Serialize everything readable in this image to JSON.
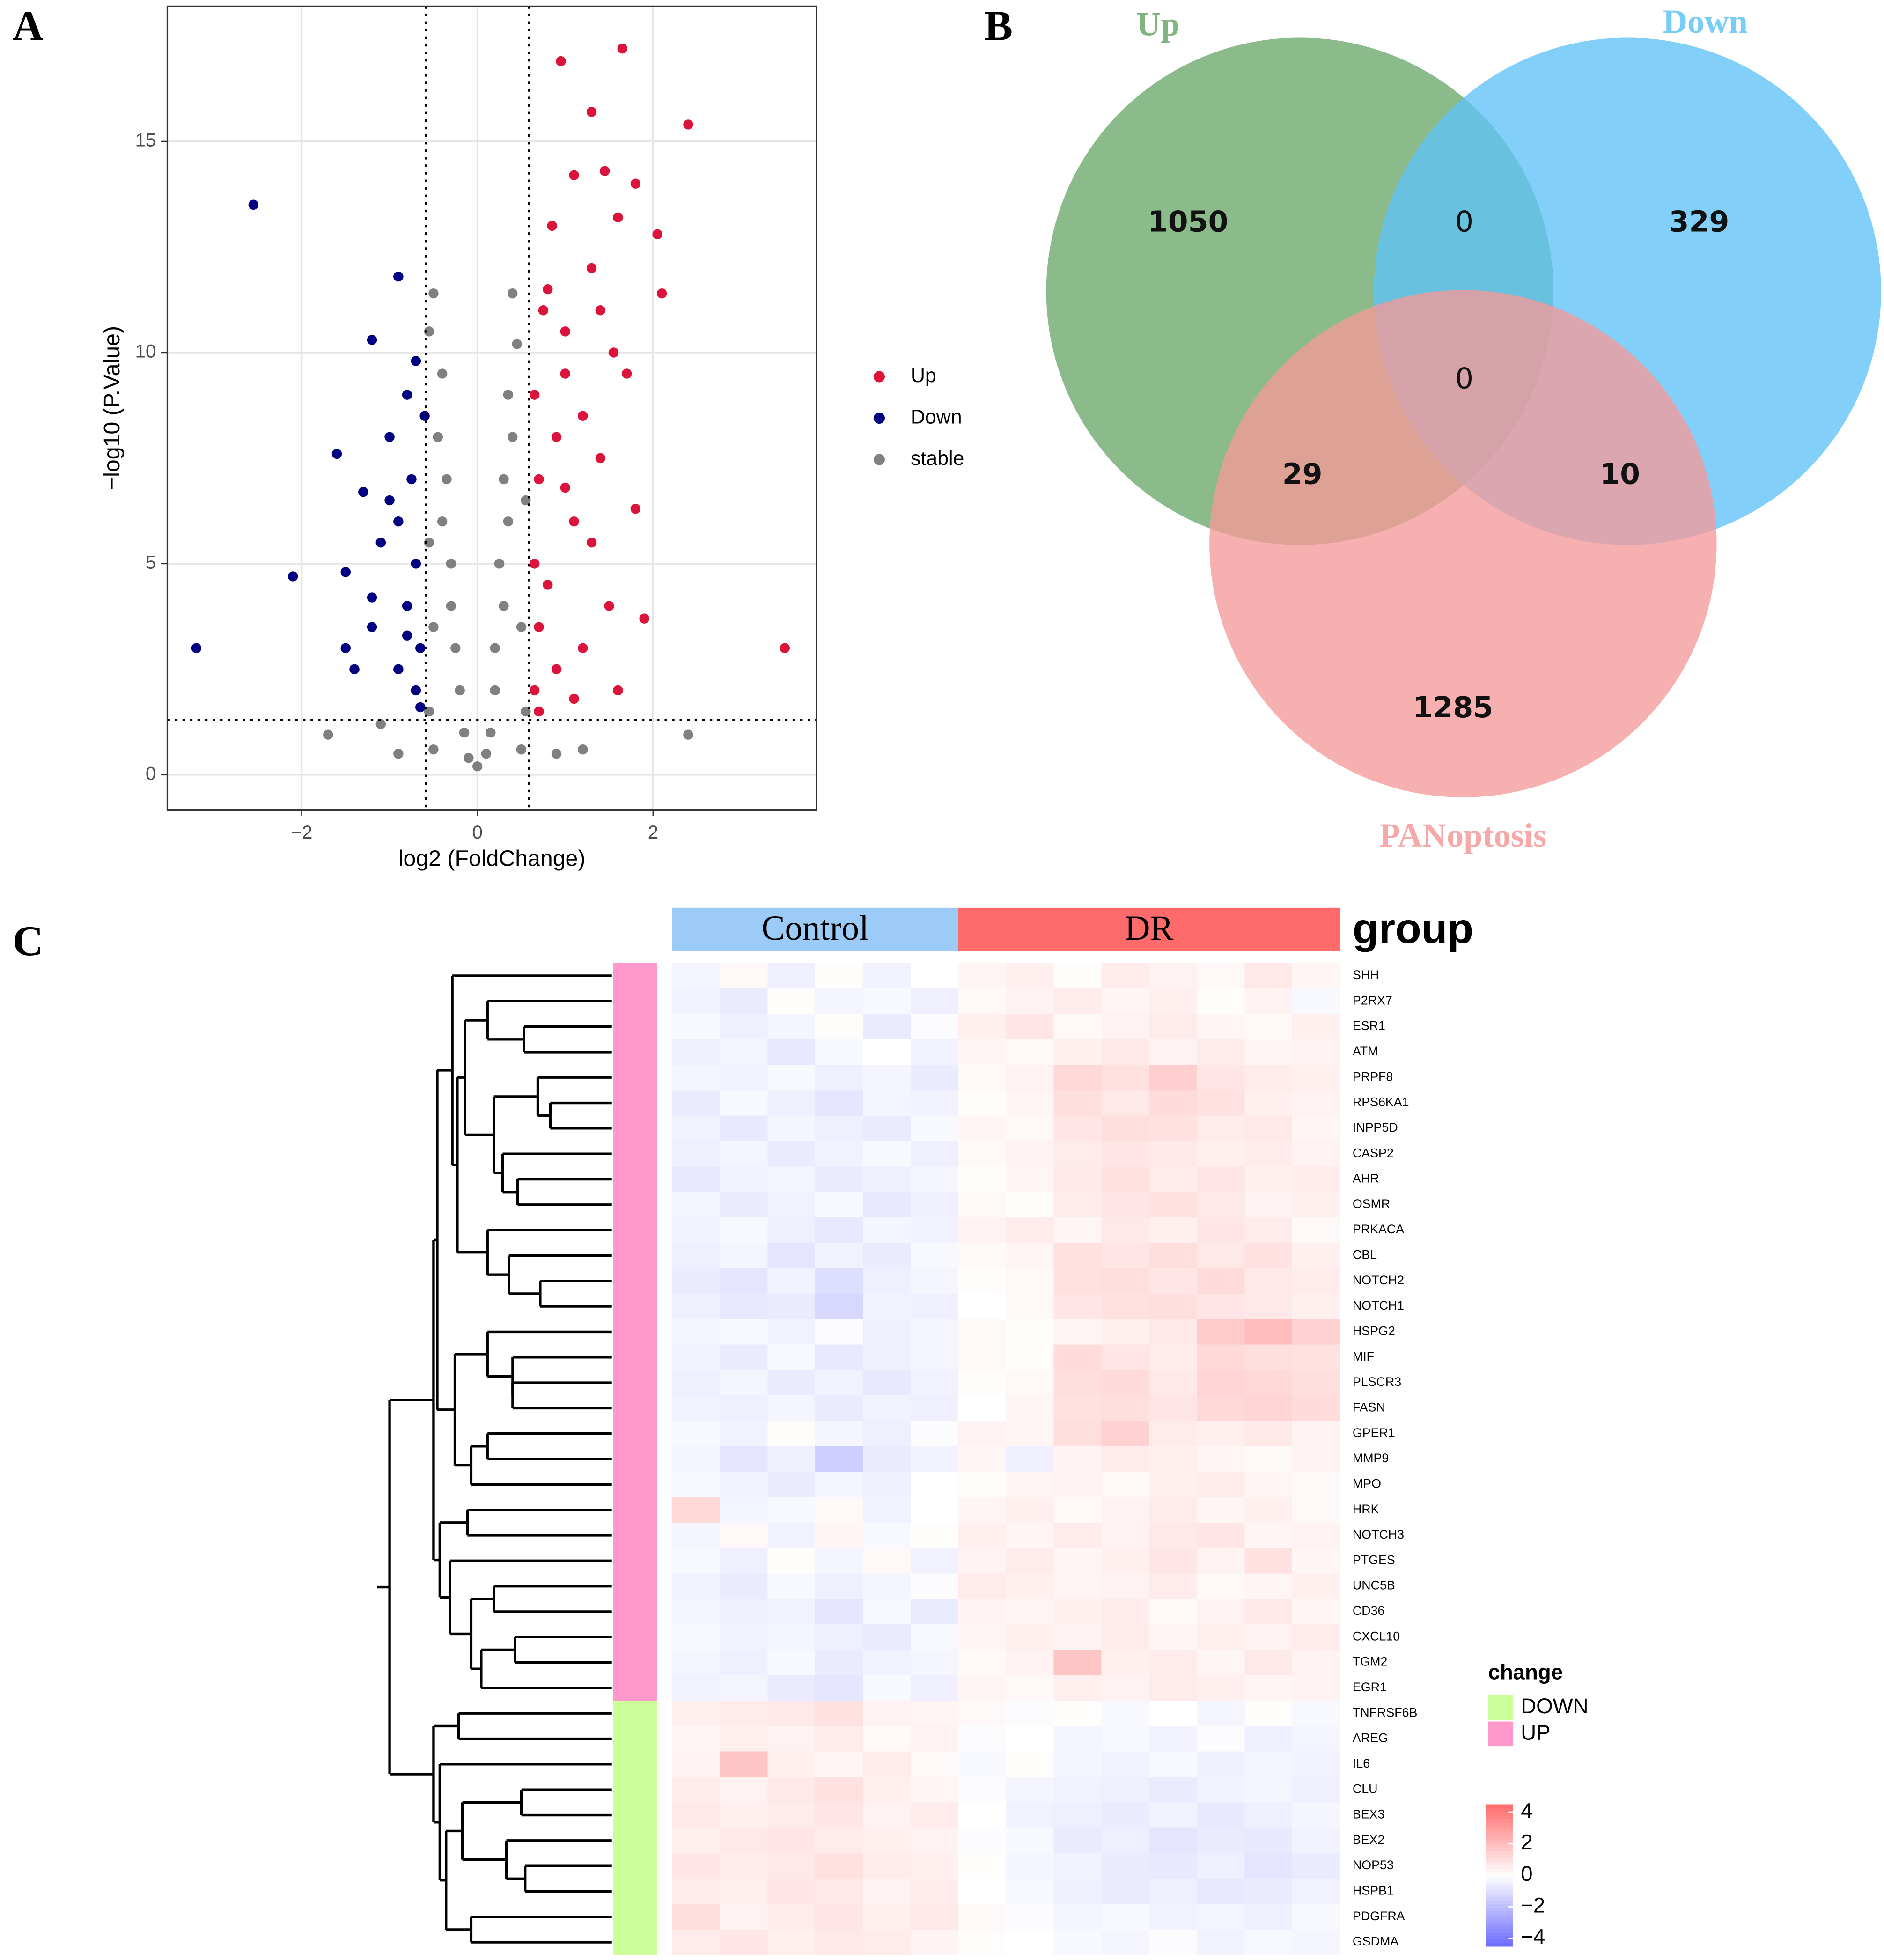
{
  "panel_labels": [
    "A",
    "B",
    "C"
  ],
  "chart_data": [
    {
      "type": "scatter",
      "xlabel": "log2 (FoldChange)",
      "ylabel": "−log10 (P.Value)",
      "xlim": [
        -3.53,
        3.86
      ],
      "ylim": [
        -0.83,
        18.2
      ],
      "xticks": [
        {
          "value": -2,
          "label": "−2"
        },
        0,
        2
      ],
      "yticks": [
        0,
        5,
        10,
        15
      ],
      "grid": true,
      "legend": "right",
      "thresholds": {
        "x": [
          -0.585,
          0.585
        ],
        "y": [
          1.301
        ]
      },
      "series": [
        {
          "name": "Up",
          "color": "#dc143c",
          "x": [
            0.95,
            1.65,
            1.3,
            2.4,
            3.5,
            1.9,
            1.1,
            1.45,
            1.8,
            2.05,
            0.85,
            1.6,
            2.1,
            1.3,
            0.75,
            1.0,
            1.55,
            1.7,
            0.65,
            1.2,
            0.9,
            1.4,
            1.8,
            0.7,
            1.1,
            0.65,
            1.3,
            0.8,
            1.5,
            0.7,
            1.2,
            0.9,
            1.6,
            0.65,
            1.1,
            0.7,
            1.0,
            0.8,
            1.4,
            1.0
          ],
          "y": [
            16.9,
            17.2,
            15.7,
            15.4,
            3.0,
            3.7,
            14.2,
            14.3,
            14.0,
            12.8,
            13.0,
            13.2,
            11.4,
            12.0,
            11.0,
            10.5,
            10.0,
            9.5,
            9.0,
            8.5,
            8.0,
            7.5,
            6.3,
            7.0,
            6.0,
            5.0,
            5.5,
            4.5,
            4.0,
            3.5,
            3.0,
            2.5,
            2.0,
            2.0,
            1.8,
            1.5,
            9.5,
            11.5,
            11.0,
            6.8
          ]
        },
        {
          "name": "Down",
          "color": "#000080",
          "x": [
            -3.2,
            -2.55,
            -2.1,
            -1.6,
            -1.2,
            -1.5,
            -1.3,
            -0.9,
            -0.8,
            -1.0,
            -0.75,
            -0.9,
            -1.1,
            -0.7,
            -0.8,
            -1.2,
            -0.65,
            -1.4,
            -0.9,
            -0.7,
            -1.0,
            -0.6,
            -0.7,
            -1.2,
            -0.8,
            -1.5,
            -0.65
          ],
          "y": [
            3.0,
            13.5,
            4.7,
            7.6,
            10.3,
            4.8,
            6.7,
            11.8,
            9.0,
            8.0,
            7.0,
            6.0,
            5.5,
            5.0,
            4.0,
            3.5,
            3.0,
            2.5,
            2.5,
            2.0,
            6.5,
            8.5,
            9.8,
            4.2,
            3.3,
            3.0,
            1.6
          ]
        },
        {
          "name": "stable",
          "color": "#808080",
          "x": [
            -1.7,
            2.4,
            0.4,
            -0.5,
            -0.55,
            0.45,
            -0.4,
            0.35,
            -0.45,
            0.4,
            -0.35,
            0.3,
            -0.4,
            0.35,
            -0.3,
            0.25,
            -0.3,
            0.3,
            -0.25,
            0.2,
            -0.2,
            0.2,
            -0.15,
            0.15,
            0,
            -0.5,
            0.5,
            -0.9,
            0.9,
            1.2,
            -1.1,
            0.1,
            -0.1,
            -0.55,
            0.55,
            -0.5,
            0.5,
            -0.55,
            0.55
          ],
          "y": [
            0.95,
            0.95,
            11.4,
            11.4,
            10.5,
            10.2,
            9.5,
            9.0,
            8.0,
            8.0,
            7.0,
            7.0,
            6.0,
            6.0,
            5.0,
            5.0,
            4.0,
            4.0,
            3.0,
            3.0,
            2.0,
            2.0,
            1.0,
            1.0,
            0.2,
            0.6,
            0.6,
            0.5,
            0.5,
            0.6,
            1.2,
            0.5,
            0.4,
            1.5,
            1.5,
            3.5,
            3.5,
            5.5,
            6.5
          ]
        }
      ]
    },
    {
      "type": "venn",
      "sets": [
        {
          "name": "Up",
          "color": "#6aa86a"
        },
        {
          "name": "Down",
          "color": "#5fc3f7"
        },
        {
          "name": "PANoptosis",
          "color": "#f59a9a"
        }
      ],
      "regions": [
        {
          "sets": [
            0
          ],
          "value": 1050
        },
        {
          "sets": [
            0,
            1
          ],
          "value": 0
        },
        {
          "sets": [
            1
          ],
          "value": 329
        },
        {
          "sets": [
            0,
            1,
            2
          ],
          "value": 0
        },
        {
          "sets": [
            0,
            2
          ],
          "value": 29
        },
        {
          "sets": [
            1,
            2
          ],
          "value": 10
        },
        {
          "sets": [
            2
          ],
          "value": 1285
        }
      ]
    },
    {
      "type": "heatmap",
      "group_title": "group",
      "groups": [
        {
          "name": "Control",
          "color": "#9dcbf7",
          "columns": 6
        },
        {
          "name": "DR",
          "color": "#ff6b6b",
          "columns": 8
        }
      ],
      "rows": [
        "SHH",
        "P2RX7",
        "ESR1",
        "ATM",
        "PRPF8",
        "RPS6KA1",
        "INPP5D",
        "CASP2",
        "AHR",
        "OSMR",
        "PRKACA",
        "CBL",
        "NOTCH2",
        "NOTCH1",
        "HSPG2",
        "MIF",
        "PLSCR3",
        "FASN",
        "GPER1",
        "MMP9",
        "MPO",
        "HRK",
        "NOTCH3",
        "PTGES",
        "UNC5B",
        "CD36",
        "CXCL10",
        "TGM2",
        "EGR1",
        "TNFRSF6B",
        "AREG",
        "IL6",
        "CLU",
        "BEX3",
        "BEX2",
        "NOP53",
        "HSPB1",
        "PDGFRA",
        "GSDMA"
      ],
      "change_legend": {
        "title": "change",
        "items": [
          {
            "name": "DOWN",
            "color": "#ccff99"
          },
          {
            "name": "UP",
            "color": "#ff99cc"
          }
        ]
      },
      "row_change": [
        1,
        1,
        1,
        1,
        1,
        1,
        1,
        1,
        1,
        1,
        1,
        1,
        1,
        1,
        1,
        1,
        1,
        1,
        1,
        1,
        1,
        1,
        1,
        1,
        1,
        1,
        1,
        1,
        1,
        0,
        0,
        0,
        0,
        0,
        0,
        0,
        0,
        0,
        0
      ],
      "colorscale": {
        "lim": [
          -4.5,
          4.5
        ],
        "colors": [
          "#6b6bff",
          "#ffffff",
          "#ff6b6b"
        ],
        "ticks": [
          4,
          2,
          0,
          {
            "value": -2,
            "label": "−2"
          },
          {
            "value": -4,
            "label": "−4"
          }
        ]
      },
      "values": [
        [
          -0.3,
          0.2,
          -0.5,
          0.1,
          -0.4,
          0.0,
          0.3,
          0.5,
          0.1,
          0.6,
          0.4,
          0.2,
          0.7,
          0.3
        ],
        [
          -0.4,
          -0.6,
          0.1,
          -0.3,
          -0.2,
          -0.5,
          0.2,
          0.4,
          0.6,
          0.3,
          0.5,
          0.1,
          0.4,
          -0.2
        ],
        [
          -0.2,
          -0.5,
          -0.3,
          0.1,
          -0.6,
          -0.1,
          0.5,
          0.8,
          0.2,
          0.4,
          0.6,
          0.3,
          0.2,
          0.5
        ],
        [
          -0.5,
          -0.3,
          -0.7,
          -0.2,
          0.0,
          -0.4,
          0.3,
          0.2,
          0.5,
          0.7,
          0.4,
          0.6,
          0.3,
          0.4
        ],
        [
          -0.3,
          -0.4,
          -0.2,
          -0.5,
          -0.3,
          -0.6,
          0.2,
          0.4,
          1.2,
          0.9,
          1.5,
          0.8,
          0.6,
          0.5
        ],
        [
          -0.6,
          -0.2,
          -0.5,
          -0.8,
          -0.3,
          -0.4,
          0.1,
          0.3,
          1.0,
          0.7,
          1.1,
          0.9,
          0.5,
          0.4
        ],
        [
          -0.4,
          -0.7,
          -0.3,
          -0.5,
          -0.6,
          -0.2,
          0.3,
          0.2,
          0.8,
          1.0,
          0.9,
          0.6,
          0.7,
          0.3
        ],
        [
          -0.5,
          -0.3,
          -0.6,
          -0.4,
          -0.2,
          -0.5,
          0.2,
          0.4,
          0.6,
          0.8,
          0.7,
          0.5,
          0.6,
          0.4
        ],
        [
          -0.7,
          -0.4,
          -0.3,
          -0.6,
          -0.5,
          -0.3,
          0.1,
          0.3,
          0.7,
          0.9,
          0.6,
          0.8,
          0.5,
          0.6
        ],
        [
          -0.3,
          -0.6,
          -0.4,
          -0.2,
          -0.7,
          -0.5,
          0.2,
          0.1,
          0.6,
          0.8,
          0.9,
          0.7,
          0.4,
          0.5
        ],
        [
          -0.4,
          -0.2,
          -0.5,
          -0.7,
          -0.3,
          -0.4,
          0.4,
          0.6,
          0.3,
          0.7,
          0.5,
          0.8,
          0.6,
          0.2
        ],
        [
          -0.5,
          -0.3,
          -0.8,
          -0.4,
          -0.6,
          -0.2,
          0.2,
          0.3,
          0.9,
          0.8,
          1.0,
          0.7,
          0.9,
          0.5
        ],
        [
          -0.6,
          -0.8,
          -0.4,
          -1.0,
          -0.5,
          -0.3,
          0.1,
          0.2,
          0.9,
          1.0,
          0.8,
          1.1,
          0.7,
          0.6
        ],
        [
          -0.5,
          -0.7,
          -0.6,
          -1.2,
          -0.4,
          -0.5,
          0.0,
          0.2,
          0.8,
          0.9,
          1.0,
          0.8,
          0.7,
          0.5
        ],
        [
          -0.3,
          -0.2,
          -0.4,
          -0.1,
          -0.5,
          -0.3,
          0.2,
          0.1,
          0.3,
          0.5,
          0.7,
          1.6,
          2.0,
          1.4
        ],
        [
          -0.4,
          -0.6,
          -0.2,
          -0.7,
          -0.5,
          -0.3,
          0.2,
          0.1,
          1.1,
          0.8,
          0.6,
          1.2,
          1.0,
          0.9
        ],
        [
          -0.5,
          -0.3,
          -0.6,
          -0.4,
          -0.7,
          -0.4,
          0.1,
          0.2,
          1.0,
          1.1,
          0.7,
          1.3,
          1.2,
          1.0
        ],
        [
          -0.4,
          -0.5,
          -0.3,
          -0.6,
          -0.4,
          -0.5,
          0.0,
          0.3,
          0.9,
          1.0,
          0.8,
          1.2,
          1.3,
          1.1
        ],
        [
          -0.2,
          -0.4,
          0.1,
          -0.3,
          -0.5,
          -0.1,
          0.4,
          0.3,
          1.0,
          1.4,
          0.6,
          0.5,
          0.7,
          0.4
        ],
        [
          -0.3,
          -0.8,
          -0.5,
          -1.5,
          -0.6,
          -0.4,
          0.3,
          -0.5,
          0.4,
          0.6,
          0.5,
          0.3,
          0.2,
          0.4
        ],
        [
          -0.2,
          -0.4,
          -0.6,
          -0.3,
          -0.5,
          0.0,
          0.1,
          0.3,
          0.4,
          0.2,
          0.5,
          0.6,
          0.3,
          0.2
        ],
        [
          1.2,
          -0.3,
          -0.2,
          0.2,
          -0.4,
          0.0,
          0.3,
          0.5,
          0.2,
          0.4,
          0.6,
          0.3,
          0.5,
          0.2
        ],
        [
          -0.3,
          0.2,
          -0.4,
          0.3,
          -0.2,
          0.1,
          0.5,
          0.3,
          0.6,
          0.4,
          0.7,
          0.8,
          0.3,
          0.4
        ],
        [
          -0.2,
          -0.5,
          0.1,
          -0.3,
          0.2,
          -0.4,
          0.4,
          0.6,
          0.3,
          0.5,
          0.8,
          0.4,
          0.9,
          0.3
        ],
        [
          -0.4,
          -0.6,
          -0.2,
          -0.5,
          -0.3,
          -0.1,
          0.6,
          0.5,
          0.3,
          0.4,
          0.6,
          0.2,
          0.3,
          0.5
        ],
        [
          -0.3,
          -0.5,
          -0.4,
          -0.8,
          -0.2,
          -0.6,
          0.4,
          0.3,
          0.5,
          0.6,
          0.2,
          0.4,
          0.7,
          0.3
        ],
        [
          -0.2,
          -0.4,
          -0.3,
          -0.5,
          -0.6,
          -0.2,
          0.3,
          0.5,
          0.4,
          0.6,
          0.3,
          0.5,
          0.4,
          0.6
        ],
        [
          -0.3,
          -0.5,
          -0.2,
          -0.6,
          -0.4,
          -0.3,
          0.2,
          0.4,
          1.8,
          0.5,
          0.6,
          0.3,
          0.7,
          0.4
        ],
        [
          -0.4,
          -0.3,
          -0.6,
          -0.8,
          -0.2,
          -0.5,
          0.3,
          0.2,
          0.5,
          0.4,
          0.6,
          0.5,
          0.3,
          0.4
        ],
        [
          0.5,
          0.6,
          0.7,
          0.9,
          0.4,
          0.3,
          0.2,
          -0.1,
          0.1,
          -0.2,
          0.0,
          -0.3,
          0.1,
          -0.2
        ],
        [
          0.3,
          0.5,
          0.4,
          0.6,
          0.2,
          0.4,
          -0.1,
          0.0,
          -0.3,
          -0.2,
          -0.4,
          -0.1,
          -0.5,
          -0.3
        ],
        [
          0.4,
          1.8,
          0.5,
          0.3,
          0.6,
          0.2,
          -0.2,
          0.1,
          -0.3,
          -0.4,
          -0.2,
          -0.5,
          -0.3,
          -0.4
        ],
        [
          0.6,
          0.4,
          0.7,
          0.9,
          0.5,
          0.3,
          -0.1,
          -0.3,
          -0.4,
          -0.5,
          -0.6,
          -0.4,
          -0.3,
          -0.5
        ],
        [
          0.7,
          0.5,
          0.6,
          0.8,
          0.4,
          0.6,
          0.0,
          -0.4,
          -0.5,
          -0.6,
          -0.4,
          -0.7,
          -0.5,
          -0.3
        ],
        [
          0.5,
          0.7,
          0.8,
          0.6,
          0.5,
          0.4,
          -0.1,
          -0.2,
          -0.6,
          -0.5,
          -0.8,
          -0.6,
          -0.7,
          -0.4
        ],
        [
          0.8,
          0.6,
          0.7,
          0.9,
          0.6,
          0.5,
          0.1,
          -0.3,
          -0.4,
          -0.6,
          -0.7,
          -0.5,
          -0.8,
          -0.6
        ],
        [
          0.6,
          0.5,
          0.8,
          0.7,
          0.4,
          0.6,
          0.0,
          -0.2,
          -0.5,
          -0.6,
          -0.5,
          -0.7,
          -0.6,
          -0.4
        ],
        [
          1.0,
          0.4,
          0.6,
          0.8,
          0.5,
          0.7,
          0.2,
          -0.1,
          -0.3,
          -0.2,
          -0.4,
          -0.3,
          -0.5,
          -0.2
        ],
        [
          0.6,
          0.8,
          0.5,
          0.7,
          0.6,
          0.4,
          0.1,
          0.0,
          -0.2,
          -0.3,
          -0.1,
          -0.4,
          -0.2,
          -0.3
        ]
      ]
    }
  ]
}
